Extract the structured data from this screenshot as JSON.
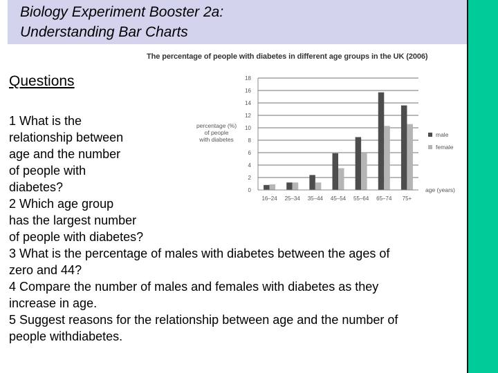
{
  "slide": {
    "title_lines": [
      "Biology Experiment Booster 2a:",
      "Understanding Bar Charts"
    ],
    "questions_heading": "Questions",
    "question_lines": [
      "1 What is the",
      "relationship between",
      "age and the number",
      "of people with",
      "diabetes?",
      "2 Which age group",
      "has the largest number",
      "of people with diabetes?",
      "3 What is the percentage of males with diabetes between the ages of",
      "zero and 44?",
      "4 Compare the number of males and females with diabetes as they",
      "increase in age.",
      "5 Suggest reasons for the relationship between age and the number of",
      "people withdiabetes."
    ]
  },
  "colors": {
    "title_band": "#d3d3ee",
    "side_bar": "#00cc99",
    "male": "#4d4d4d",
    "female": "#b5b5b5"
  },
  "chart_data": {
    "type": "bar",
    "title": "The percentage of people with diabetes in different age groups in the UK (2006)",
    "ylabel": [
      "percentage (%)",
      "of people",
      "with diabetes"
    ],
    "xlabel": "age (years)",
    "categories": [
      "16–24",
      "25–34",
      "35–44",
      "45–54",
      "55–64",
      "65–74",
      "75+"
    ],
    "series": [
      {
        "name": "male",
        "values": [
          0.8,
          1.2,
          2.4,
          5.9,
          8.5,
          15.7,
          13.6
        ]
      },
      {
        "name": "female",
        "values": [
          0.9,
          1.2,
          1.2,
          3.5,
          5.9,
          10.3,
          10.6
        ]
      }
    ],
    "ylim": [
      0,
      18
    ],
    "yticks": [
      0,
      2,
      4,
      6,
      8,
      10,
      12,
      14,
      16,
      18
    ],
    "grid": true,
    "legend_position": "right"
  }
}
